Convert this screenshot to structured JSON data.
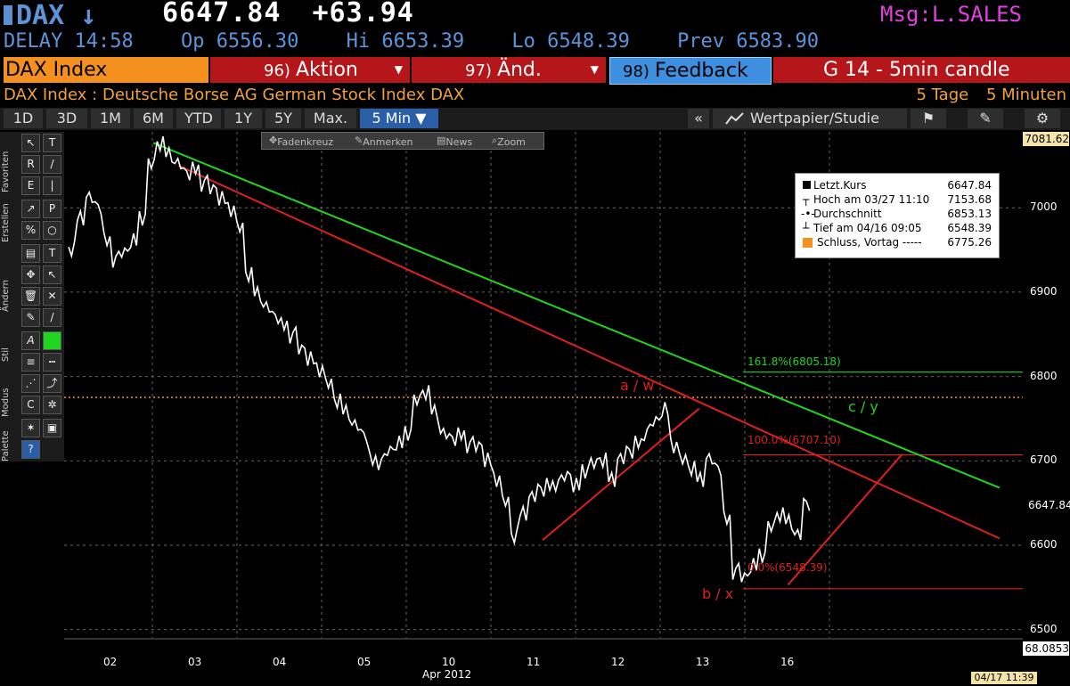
{
  "header": {
    "ticker": "DAX",
    "arrow": "↓",
    "last": "6647.84",
    "change": "+63.94",
    "msg": "Msg:L.SALES"
  },
  "quote": {
    "delay": "DELAY 14:58",
    "open": "Op 6556.30",
    "high": "Hi 6653.39",
    "low": "Lo 6548.39",
    "prev": "Prev 6583.90"
  },
  "menu": {
    "index": "DAX Index",
    "aktion_num": "96)",
    "aktion": "Aktion",
    "aend_num": "97)",
    "aend": "Änd.",
    "feedback_num": "98)",
    "feedback": "Feedback",
    "title": "G 14 - 5min candle"
  },
  "subtitle": {
    "left": "DAX Index : Deutsche Borse AG German Stock Index DAX",
    "days": "5 Tage",
    "interval": "5 Minuten"
  },
  "toolbar": {
    "periods": [
      "1D",
      "3D",
      "1M",
      "6M",
      "YTD",
      "1Y",
      "5Y",
      "Max.",
      "5 Min ▼"
    ],
    "collapse": "«",
    "studie": "Wertpapier/Studie"
  },
  "floatbar": {
    "items": [
      "Fadenkreuz",
      "Anmerken",
      "News",
      "Zoom"
    ]
  },
  "lefttoolbar": {
    "groups": [
      "Favoriten",
      "Erstellen",
      "Ändern",
      "Stil",
      "Modus",
      "Palette"
    ]
  },
  "legend": {
    "rows": [
      {
        "label": "Letzt.Kurs",
        "value": "6647.84"
      },
      {
        "label": "Hoch am 03/27 11:10",
        "value": "7153.68"
      },
      {
        "label": "Durchschnitt",
        "value": "6853.13"
      },
      {
        "label": "Tief am 04/16 09:05",
        "value": "6548.39"
      },
      {
        "label": "Schluss, Vortag -----",
        "value": "6775.26"
      }
    ]
  },
  "stamp": "04/17 11:39",
  "chart_data": {
    "type": "line",
    "y_ticks": [
      "7000",
      "6900",
      "6800",
      "6700",
      "6600",
      "6500"
    ],
    "ylim": [
      6488,
      7090
    ],
    "top_label": "7081.62",
    "last_label": "6647.84",
    "bottom_indicator_label": "68.0853",
    "x_ticks": [
      "02",
      "03",
      "04",
      "05",
      "10",
      "11",
      "12",
      "13",
      "16"
    ],
    "x_month_label": "Apr 2012",
    "prev_close": 6775.26,
    "series": [
      {
        "name": "DAX",
        "values": [
          6950,
          6990,
          7010,
          7000,
          6960,
          6940,
          6945,
          6960,
          6990,
          7050,
          7075,
          7065,
          7050,
          7040,
          7045,
          7030,
          7020,
          7010,
          7000,
          6975,
          6920,
          6900,
          6880,
          6870,
          6860,
          6850,
          6830,
          6820,
          6810,
          6790,
          6770,
          6760,
          6740,
          6730,
          6700,
          6700,
          6710,
          6720,
          6735,
          6770,
          6780,
          6760,
          6730,
          6725,
          6730,
          6720,
          6715,
          6700,
          6680,
          6650,
          6610,
          6640,
          6655,
          6665,
          6670,
          6675,
          6680,
          6670,
          6690,
          6695,
          6700,
          6680,
          6700,
          6710,
          6720,
          6735,
          6745,
          6760,
          6720,
          6700,
          6690,
          6680,
          6700,
          6690,
          6630,
          6570,
          6560,
          6575,
          6590,
          6620,
          6635,
          6630,
          6610,
          6648
        ]
      }
    ],
    "annotations": [
      {
        "text": "a / w"
      },
      {
        "text": "b / x"
      },
      {
        "text": "c / y"
      },
      {
        "text": "161.8%(6805.18)",
        "value": 6805.18
      },
      {
        "text": "100.0%(6707.10)",
        "value": 6707.1
      },
      {
        "text": "0.0%(6548.39)",
        "value": 6548.39
      }
    ],
    "trendlines": [
      {
        "name": "upper-trend-green",
        "color": "#1fd51f",
        "from": [
          1,
          7077
        ],
        "to": [
          11,
          6668
        ]
      },
      {
        "name": "upper-trend-red",
        "color": "#e01f1f",
        "from": [
          1.3,
          7050
        ],
        "to": [
          11,
          6608
        ]
      },
      {
        "name": "abc-up-1",
        "color": "#e01f1f",
        "from": [
          5.6,
          6606
        ],
        "to": [
          7.45,
          6762
        ]
      },
      {
        "name": "abc-up-2",
        "color": "#e01f1f",
        "from": [
          8.5,
          6553
        ],
        "to": [
          9.85,
          6708
        ]
      }
    ]
  },
  "colors": {
    "accent_blue": "#5b94db",
    "orange": "#f4901e",
    "red": "#b5161a",
    "green_line": "#1fd51f",
    "red_line": "#e01f1f",
    "msg": "#e040e0"
  }
}
